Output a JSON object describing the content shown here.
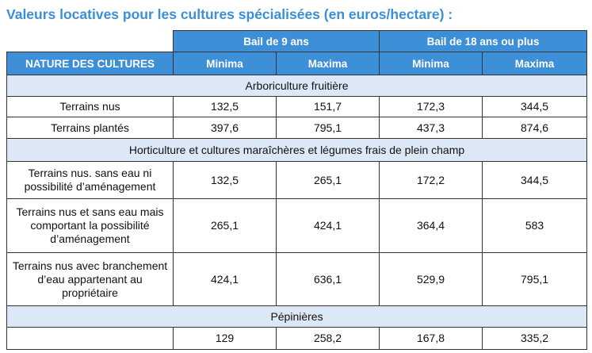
{
  "title": "Valeurs locatives pour les cultures spécialisées (en euros/hectare) :",
  "header": {
    "first_column": "NATURE DES CULTURES",
    "groups": [
      "Bail de 9 ans",
      "Bail de 18 ans ou plus"
    ],
    "subcolumns": [
      "Minima",
      "Maxima",
      "Minima",
      "Maxima"
    ]
  },
  "sections": [
    {
      "name": "Arboriculture fruitière",
      "rows": [
        {
          "label": "Terrains nus",
          "values": [
            "132,5",
            "151,7",
            "172,3",
            "344,5"
          ]
        },
        {
          "label": "Terrains plantés",
          "values": [
            "397,6",
            "795,1",
            "437,3",
            "874,6"
          ]
        }
      ]
    },
    {
      "name": "Horticulture et cultures maraîchères et légumes frais de plein champ",
      "rows": [
        {
          "label": "Terrains nus. sans eau ni possibilité d’aménagement",
          "values": [
            "132,5",
            "265,1",
            "172,2",
            "344,5"
          ]
        },
        {
          "label": "Terrains nus et sans eau mais comportant la possibilité d’aménagement",
          "values": [
            "265,1",
            "424,1",
            "364,4",
            "583"
          ]
        },
        {
          "label": "Terrains nus avec branchement d’eau appartenant au propriétaire",
          "values": [
            "424,1",
            "636,1",
            "529,9",
            "795,1"
          ]
        }
      ]
    },
    {
      "name": "Pépinières",
      "rows": [
        {
          "values": [
            "129",
            "258,2",
            "167,8",
            "335,2"
          ]
        }
      ]
    }
  ]
}
